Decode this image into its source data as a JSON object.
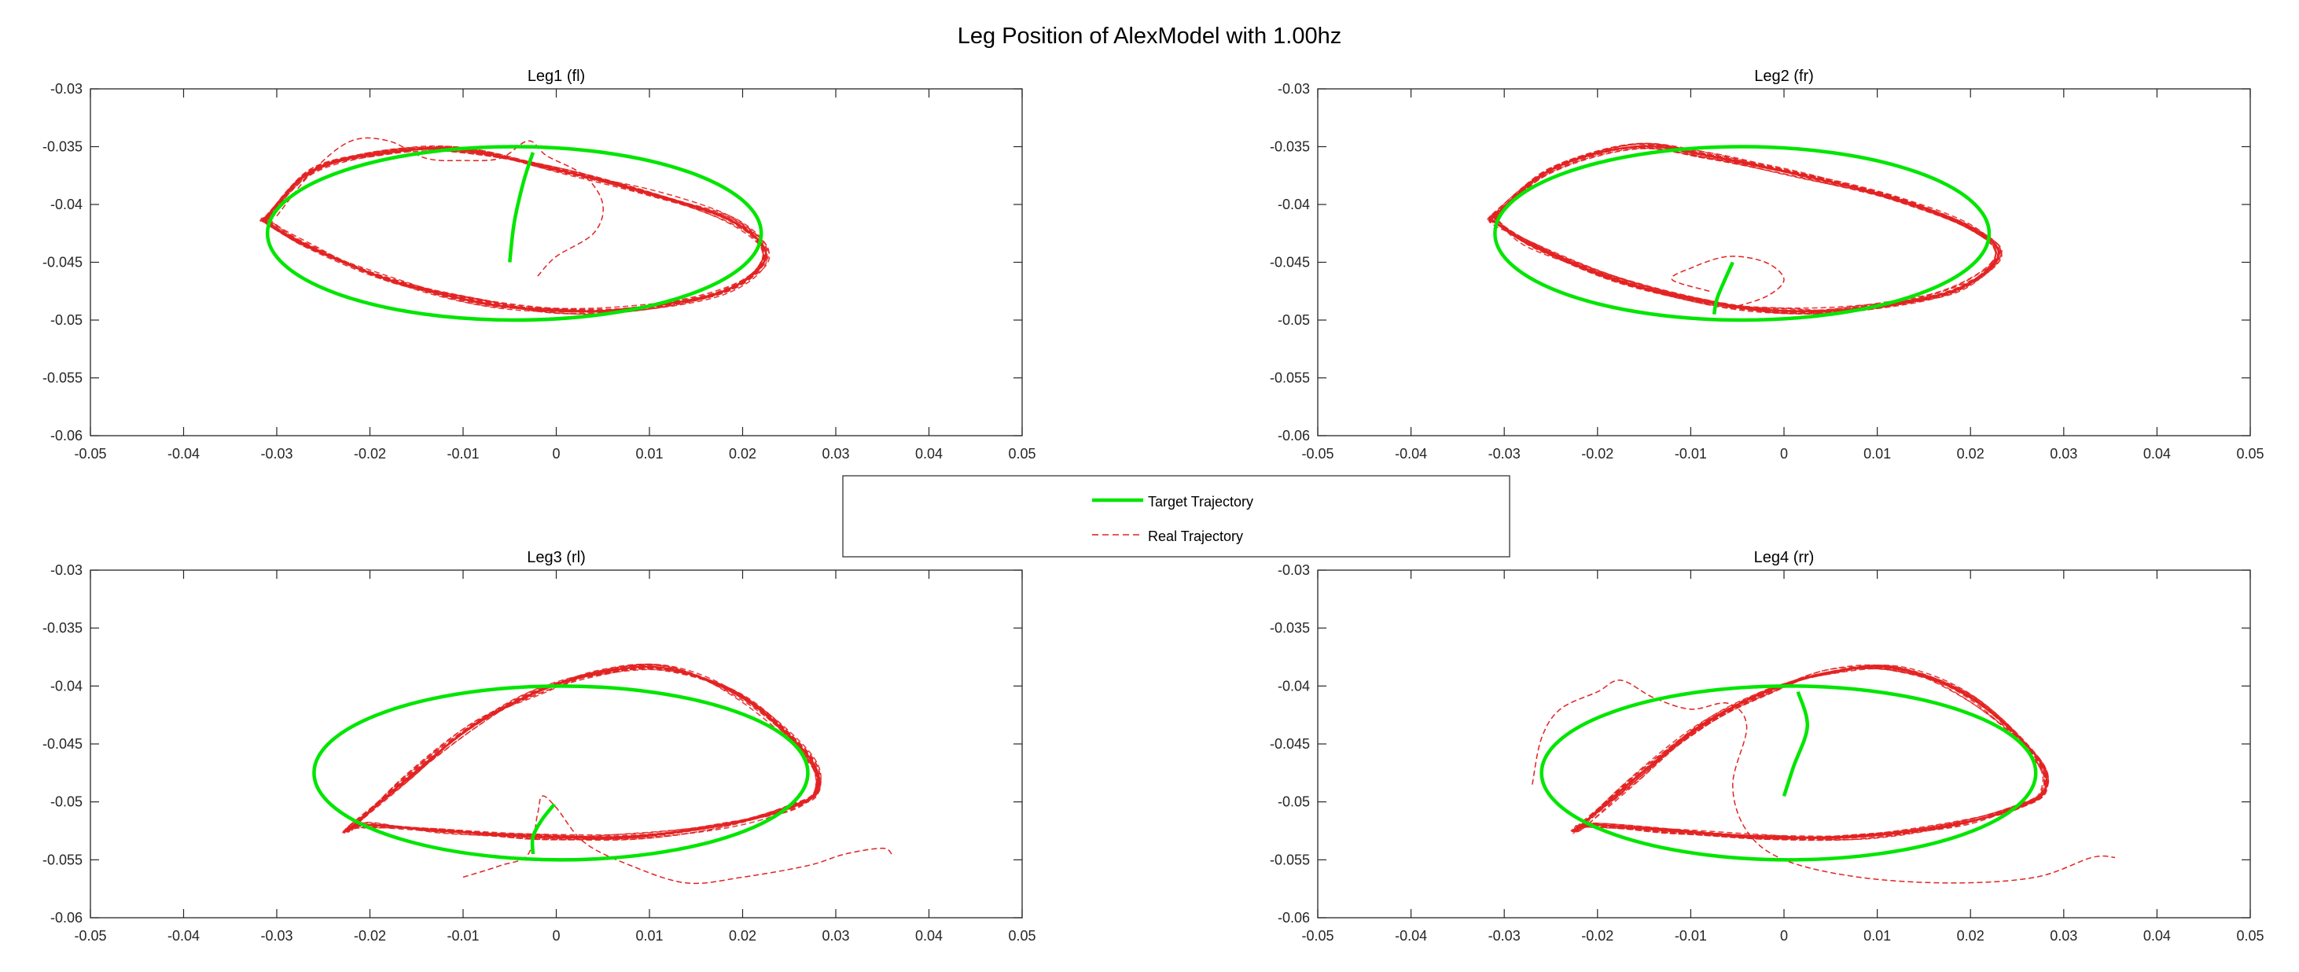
{
  "figure_title": "Leg Position of AlexModel with 1.00hz",
  "legend": [
    {
      "label": "Target Trajectory",
      "color": "#00e600",
      "style": "solid"
    },
    {
      "label": "Real Trajectory",
      "color": "#e32222",
      "style": "dashed"
    }
  ],
  "chart_data": [
    {
      "type": "line",
      "title": "Leg1 (fl)",
      "xlim": [
        -0.05,
        0.05
      ],
      "ylim": [
        -0.06,
        -0.03
      ],
      "xticks": [
        "-0.05",
        "-0.04",
        "-0.03",
        "-0.02",
        "-0.01",
        "0",
        "0.01",
        "0.02",
        "0.03",
        "0.04",
        "0.05"
      ],
      "yticks": [
        "-0.06",
        "-0.055",
        "-0.05",
        "-0.045",
        "-0.04",
        "-0.035",
        "-0.03"
      ],
      "target": {
        "center": [
          -0.0045,
          -0.0425
        ],
        "rx": 0.0265,
        "ry": 0.0075,
        "start_curve": [
          [
            -0.005,
            -0.045
          ],
          [
            -0.0045,
            -0.0415
          ],
          [
            -0.0035,
            -0.038
          ],
          [
            -0.0025,
            -0.0355
          ]
        ]
      },
      "real": {
        "loop": [
          [
            -0.031,
            -0.041
          ],
          [
            -0.026,
            -0.037
          ],
          [
            -0.018,
            -0.0355
          ],
          [
            -0.01,
            -0.0353
          ],
          [
            0.0,
            -0.037
          ],
          [
            0.01,
            -0.039
          ],
          [
            0.019,
            -0.0415
          ],
          [
            0.0225,
            -0.0445
          ],
          [
            0.018,
            -0.0475
          ],
          [
            0.008,
            -0.049
          ],
          [
            0.0,
            -0.0492
          ],
          [
            -0.008,
            -0.0485
          ],
          [
            -0.018,
            -0.0465
          ],
          [
            -0.027,
            -0.0435
          ],
          [
            -0.031,
            -0.0415
          ]
        ],
        "transient": [
          [
            -0.03,
            -0.041
          ],
          [
            -0.026,
            -0.037
          ],
          [
            -0.022,
            -0.0345
          ],
          [
            -0.018,
            -0.0345
          ],
          [
            -0.014,
            -0.036
          ],
          [
            -0.01,
            -0.0362
          ],
          [
            -0.006,
            -0.036
          ],
          [
            -0.003,
            -0.0345
          ],
          [
            -0.001,
            -0.0358
          ],
          [
            0.003,
            -0.0375
          ],
          [
            0.005,
            -0.04
          ],
          [
            0.004,
            -0.0425
          ],
          [
            0.0,
            -0.0445
          ],
          [
            -0.002,
            -0.0462
          ]
        ]
      }
    },
    {
      "type": "line",
      "title": "Leg2 (fr)",
      "xlim": [
        -0.05,
        0.05
      ],
      "ylim": [
        -0.06,
        -0.03
      ],
      "xticks": [
        "-0.05",
        "-0.04",
        "-0.03",
        "-0.02",
        "-0.01",
        "0",
        "0.01",
        "0.02",
        "0.03",
        "0.04",
        "0.05"
      ],
      "yticks": [
        "-0.06",
        "-0.055",
        "-0.05",
        "-0.045",
        "-0.04",
        "-0.035",
        "-0.03"
      ],
      "target": {
        "center": [
          -0.0045,
          -0.0425
        ],
        "rx": 0.0265,
        "ry": 0.0075,
        "start_curve": [
          [
            -0.0075,
            -0.0495
          ],
          [
            -0.0072,
            -0.0482
          ],
          [
            -0.0065,
            -0.0468
          ],
          [
            -0.0055,
            -0.045
          ]
        ]
      },
      "real": {
        "loop": [
          [
            -0.031,
            -0.041
          ],
          [
            -0.025,
            -0.037
          ],
          [
            -0.016,
            -0.035
          ],
          [
            -0.008,
            -0.0358
          ],
          [
            0.002,
            -0.0375
          ],
          [
            0.012,
            -0.0395
          ],
          [
            0.02,
            -0.042
          ],
          [
            0.023,
            -0.0445
          ],
          [
            0.018,
            -0.0475
          ],
          [
            0.008,
            -0.049
          ],
          [
            0.0,
            -0.0492
          ],
          [
            -0.008,
            -0.0485
          ],
          [
            -0.018,
            -0.0465
          ],
          [
            -0.027,
            -0.0435
          ],
          [
            -0.031,
            -0.0415
          ]
        ],
        "transient": [
          [
            -0.008,
            -0.0475
          ],
          [
            -0.012,
            -0.0465
          ],
          [
            -0.01,
            -0.0455
          ],
          [
            -0.006,
            -0.0445
          ],
          [
            -0.002,
            -0.045
          ],
          [
            0.0,
            -0.0465
          ],
          [
            -0.002,
            -0.048
          ],
          [
            -0.006,
            -0.049
          ]
        ]
      }
    },
    {
      "type": "line",
      "title": "Leg3 (rl)",
      "xlim": [
        -0.05,
        0.05
      ],
      "ylim": [
        -0.06,
        -0.03
      ],
      "xticks": [
        "-0.05",
        "-0.04",
        "-0.03",
        "-0.02",
        "-0.01",
        "0",
        "0.01",
        "0.02",
        "0.03",
        "0.04",
        "0.05"
      ],
      "yticks": [
        "-0.06",
        "-0.055",
        "-0.05",
        "-0.045",
        "-0.04",
        "-0.035",
        "-0.03"
      ],
      "target": {
        "center": [
          0.0005,
          -0.0475
        ],
        "rx": 0.0265,
        "ry": 0.0075,
        "start_curve": [
          [
            -0.0025,
            -0.0545
          ],
          [
            -0.0025,
            -0.053
          ],
          [
            -0.0015,
            -0.0515
          ],
          [
            -0.0002,
            -0.0502
          ]
        ]
      },
      "real": {
        "loop": [
          [
            -0.022,
            -0.0522
          ],
          [
            -0.016,
            -0.048
          ],
          [
            -0.009,
            -0.0435
          ],
          [
            -0.002,
            -0.0405
          ],
          [
            0.005,
            -0.0388
          ],
          [
            0.012,
            -0.0385
          ],
          [
            0.02,
            -0.041
          ],
          [
            0.027,
            -0.046
          ],
          [
            0.028,
            -0.049
          ],
          [
            0.025,
            -0.0505
          ],
          [
            0.018,
            -0.052
          ],
          [
            0.008,
            -0.053
          ],
          [
            -0.002,
            -0.053
          ],
          [
            -0.012,
            -0.0525
          ],
          [
            -0.02,
            -0.052
          ],
          [
            -0.022,
            -0.0522
          ]
        ],
        "transient": [
          [
            -0.01,
            -0.0565
          ],
          [
            -0.006,
            -0.0555
          ],
          [
            -0.003,
            -0.0545
          ],
          [
            -0.002,
            -0.051
          ],
          [
            -0.0015,
            -0.0495
          ],
          [
            0.0,
            -0.0505
          ],
          [
            0.003,
            -0.0535
          ],
          [
            0.008,
            -0.0555
          ],
          [
            0.014,
            -0.057
          ],
          [
            0.02,
            -0.0565
          ],
          [
            0.027,
            -0.0555
          ],
          [
            0.031,
            -0.0545
          ],
          [
            0.035,
            -0.054
          ],
          [
            0.036,
            -0.0545
          ]
        ]
      }
    },
    {
      "type": "line",
      "title": "Leg4 (rr)",
      "xlim": [
        -0.05,
        0.05
      ],
      "ylim": [
        -0.06,
        -0.03
      ],
      "xticks": [
        "-0.05",
        "-0.04",
        "-0.03",
        "-0.02",
        "-0.01",
        "0",
        "0.01",
        "0.02",
        "0.03",
        "0.04",
        "0.05"
      ],
      "yticks": [
        "-0.06",
        "-0.055",
        "-0.05",
        "-0.045",
        "-0.04",
        "-0.035",
        "-0.03"
      ],
      "target": {
        "center": [
          0.0005,
          -0.0475
        ],
        "rx": 0.0265,
        "ry": 0.0075,
        "start_curve": [
          [
            0.0,
            -0.0495
          ],
          [
            0.001,
            -0.047
          ],
          [
            0.0025,
            -0.0435
          ],
          [
            0.0015,
            -0.0405
          ]
        ]
      },
      "real": {
        "loop": [
          [
            -0.022,
            -0.0522
          ],
          [
            -0.016,
            -0.048
          ],
          [
            -0.009,
            -0.0435
          ],
          [
            -0.002,
            -0.0405
          ],
          [
            0.005,
            -0.0388
          ],
          [
            0.012,
            -0.0385
          ],
          [
            0.02,
            -0.041
          ],
          [
            0.027,
            -0.046
          ],
          [
            0.028,
            -0.049
          ],
          [
            0.025,
            -0.0505
          ],
          [
            0.018,
            -0.052
          ],
          [
            0.008,
            -0.053
          ],
          [
            -0.002,
            -0.053
          ],
          [
            -0.012,
            -0.0525
          ],
          [
            -0.02,
            -0.052
          ],
          [
            -0.022,
            -0.0522
          ]
        ],
        "transient": [
          [
            -0.027,
            -0.0485
          ],
          [
            -0.026,
            -0.0445
          ],
          [
            -0.024,
            -0.042
          ],
          [
            -0.02,
            -0.0405
          ],
          [
            -0.0175,
            -0.0395
          ],
          [
            -0.014,
            -0.041
          ],
          [
            -0.01,
            -0.042
          ],
          [
            -0.006,
            -0.0415
          ],
          [
            -0.004,
            -0.0435
          ],
          [
            -0.0055,
            -0.0485
          ],
          [
            -0.004,
            -0.0525
          ],
          [
            0.0,
            -0.055
          ],
          [
            0.008,
            -0.0565
          ],
          [
            0.018,
            -0.057
          ],
          [
            0.027,
            -0.0565
          ],
          [
            0.033,
            -0.0548
          ],
          [
            0.0355,
            -0.0548
          ]
        ]
      }
    }
  ]
}
